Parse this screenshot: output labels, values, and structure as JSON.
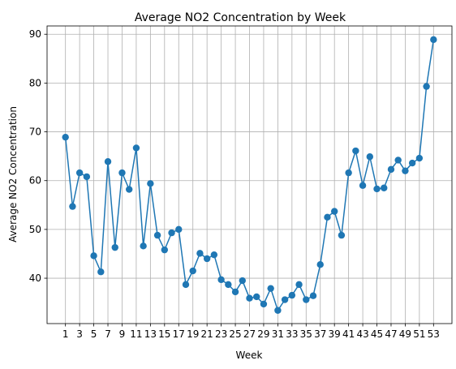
{
  "chart_data": {
    "type": "line",
    "title": "Average NO2 Concentration by Week",
    "xlabel": "Week",
    "ylabel": "Average NO2 Concentration",
    "x": [
      1,
      2,
      3,
      4,
      5,
      6,
      7,
      8,
      9,
      10,
      11,
      12,
      13,
      14,
      15,
      16,
      17,
      18,
      19,
      20,
      21,
      22,
      23,
      24,
      25,
      26,
      27,
      28,
      29,
      30,
      31,
      32,
      33,
      34,
      35,
      36,
      37,
      38,
      39,
      40,
      41,
      42,
      43,
      44,
      45,
      46,
      47,
      48,
      49,
      50,
      51,
      52,
      53
    ],
    "series": [
      {
        "values": [
          68.9,
          54.7,
          61.6,
          60.8,
          44.6,
          41.3,
          63.9,
          46.3,
          61.6,
          58.2,
          66.7,
          46.6,
          59.4,
          48.8,
          45.8,
          49.3,
          50.0,
          38.7,
          41.5,
          45.1,
          44.0,
          44.8,
          39.7,
          38.7,
          37.2,
          39.5,
          35.9,
          36.2,
          34.7,
          37.9,
          33.4,
          35.6,
          36.5,
          38.7,
          35.6,
          36.4,
          42.8,
          52.5,
          53.7,
          48.8,
          61.6,
          66.1,
          59.0,
          64.9,
          58.3,
          58.5,
          62.3,
          64.2,
          62.0,
          63.6,
          64.6,
          79.3,
          88.9
        ],
        "color": "#1f77b4"
      }
    ],
    "xticks": [
      1,
      3,
      5,
      7,
      9,
      11,
      13,
      15,
      17,
      19,
      21,
      23,
      25,
      27,
      29,
      31,
      33,
      35,
      37,
      39,
      41,
      43,
      45,
      47,
      49,
      51,
      53
    ],
    "xtick_labels": [
      "1",
      "3",
      "5",
      "7",
      "9",
      "11",
      "13",
      "15",
      "17",
      "19",
      "21",
      "23",
      "25",
      "27",
      "29",
      "31",
      "33",
      "35",
      "37",
      "39",
      "41",
      "43",
      "45",
      "47",
      "49",
      "51",
      "53"
    ],
    "yticks": [
      40,
      50,
      60,
      70,
      80,
      90
    ],
    "ytick_labels": [
      "40",
      "50",
      "60",
      "70",
      "80",
      "90"
    ],
    "xlim": [
      -1.6,
      55.6
    ],
    "ylim": [
      30.7,
      91.7
    ],
    "grid": true
  }
}
